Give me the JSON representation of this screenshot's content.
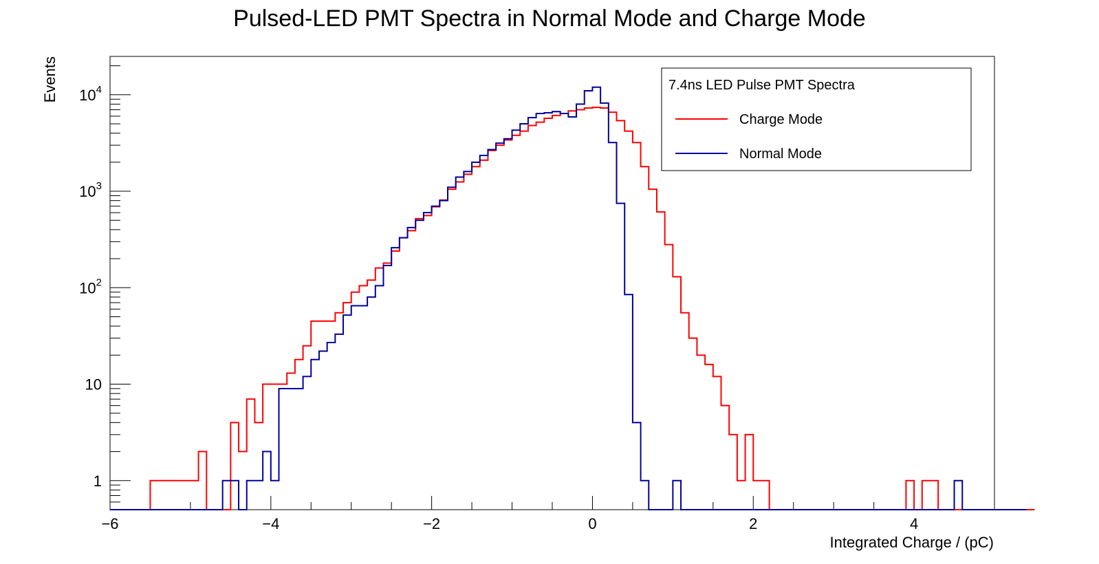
{
  "chart_data": {
    "type": "histogram",
    "title": "Pulsed-LED PMT Spectra in Normal Mode and Charge Mode",
    "xlabel": "Integrated Charge / (pC)",
    "ylabel": "Events",
    "xlim": [
      -6,
      5
    ],
    "ylim": [
      0.5,
      25000
    ],
    "log_y": true,
    "grid": false,
    "x_ticks": [
      -6,
      -4,
      -2,
      0,
      2,
      4
    ],
    "x_tick_labels": [
      "−6",
      "−4",
      "−2",
      "0",
      "2",
      "4"
    ],
    "y_ticks": [
      1,
      10,
      100,
      1000,
      10000
    ],
    "y_tick_labels": [
      {
        "base": "1",
        "exp": ""
      },
      {
        "base": "10",
        "exp": ""
      },
      {
        "base": "10",
        "exp": "2"
      },
      {
        "base": "10",
        "exp": "3"
      },
      {
        "base": "10",
        "exp": "4"
      }
    ],
    "bin_start": -6,
    "bin_width": 0.1,
    "legend": {
      "title": "7.4ns LED Pulse PMT Spectra",
      "position": "top-right"
    },
    "series": [
      {
        "name": "Charge Mode",
        "color": "#ff0000",
        "values": [
          0,
          0,
          0,
          0,
          0,
          1,
          1,
          1,
          1,
          1,
          1,
          2,
          0,
          0,
          0,
          4,
          2,
          7,
          4,
          10,
          10,
          10,
          13,
          18,
          25,
          45,
          45,
          45,
          55,
          70,
          90,
          105,
          120,
          160,
          180,
          240,
          330,
          390,
          520,
          560,
          690,
          810,
          1050,
          1250,
          1500,
          1800,
          2100,
          2650,
          3000,
          3400,
          3800,
          4200,
          4800,
          5200,
          5700,
          6100,
          6400,
          6800,
          7000,
          7300,
          7400,
          7300,
          6600,
          5400,
          4200,
          3200,
          1800,
          1050,
          610,
          280,
          130,
          55,
          30,
          20,
          16,
          12,
          6,
          3,
          1,
          3,
          1,
          1,
          0,
          0,
          0,
          0,
          0,
          0,
          0,
          0,
          0,
          0,
          0,
          0,
          0,
          0,
          0,
          0,
          0,
          1,
          0,
          1,
          1,
          0,
          0,
          0,
          0,
          0,
          0,
          0,
          0,
          0,
          0,
          0,
          0
        ]
      },
      {
        "name": "Normal Mode",
        "color": "#000099",
        "values": [
          0,
          0,
          0,
          0,
          0,
          0,
          0,
          0,
          0,
          0,
          0,
          0,
          0,
          0,
          1,
          1,
          0,
          1,
          1,
          2,
          1,
          9,
          9,
          9,
          12,
          18,
          22,
          27,
          33,
          52,
          65,
          65,
          80,
          105,
          170,
          260,
          330,
          420,
          500,
          600,
          700,
          800,
          1100,
          1400,
          1600,
          2000,
          2350,
          2700,
          3150,
          3500,
          4300,
          5000,
          5800,
          6400,
          6500,
          6700,
          6400,
          5900,
          8000,
          11000,
          12000,
          8200,
          3200,
          750,
          85,
          4,
          1,
          0,
          0,
          0,
          1,
          0,
          0,
          0,
          0,
          0,
          0,
          0,
          0,
          0,
          0,
          0,
          0,
          0,
          0,
          0,
          0,
          0,
          0,
          0,
          0,
          0,
          0,
          0,
          0,
          0,
          0,
          0,
          0,
          0,
          0,
          0,
          0,
          0,
          0,
          1,
          0,
          0,
          0,
          0,
          0,
          0,
          0,
          0
        ]
      }
    ]
  }
}
